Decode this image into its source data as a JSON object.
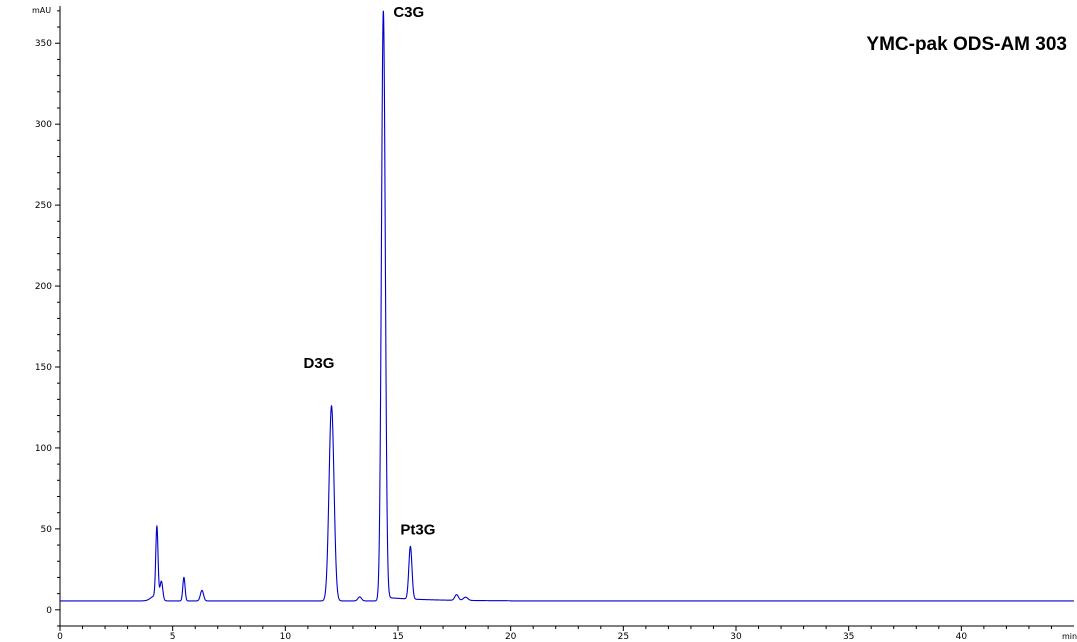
{
  "chart_data": {
    "type": "line",
    "title": "YMC-pak ODS-AM 303",
    "ylabel": "mAU",
    "xlabel": "min",
    "xlim": [
      0,
      45
    ],
    "ylim": [
      -10,
      373
    ],
    "x_ticks": [
      "0",
      "5",
      "10",
      "15",
      "20",
      "25",
      "30",
      "35",
      "40"
    ],
    "y_ticks": [
      "0",
      "50",
      "100",
      "150",
      "200",
      "250",
      "300",
      "350"
    ],
    "grid": false,
    "line_color": "#0000cc",
    "baseline": 5.5,
    "peaks": [
      {
        "name": "",
        "x": 4.3,
        "height": 49
      },
      {
        "name": "",
        "x": 4.5,
        "height": 17
      },
      {
        "name": "",
        "x": 5.5,
        "height": 20
      },
      {
        "name": "",
        "x": 6.3,
        "height": 12
      },
      {
        "name": "D3G",
        "x": 12.05,
        "height": 126
      },
      {
        "name": "",
        "x": 13.3,
        "height": 8
      },
      {
        "name": "C3G",
        "x": 14.35,
        "height": 370
      },
      {
        "name": "Pt3G",
        "x": 15.55,
        "height": 38
      },
      {
        "name": "",
        "x": 17.6,
        "height": 9
      },
      {
        "name": "",
        "x": 18.0,
        "height": 7.5
      }
    ],
    "peak_labels": [
      {
        "text": "D3G",
        "x": 12.05
      },
      {
        "text": "C3G",
        "x": 14.35
      },
      {
        "text": "Pt3G",
        "x": 15.55
      }
    ]
  }
}
